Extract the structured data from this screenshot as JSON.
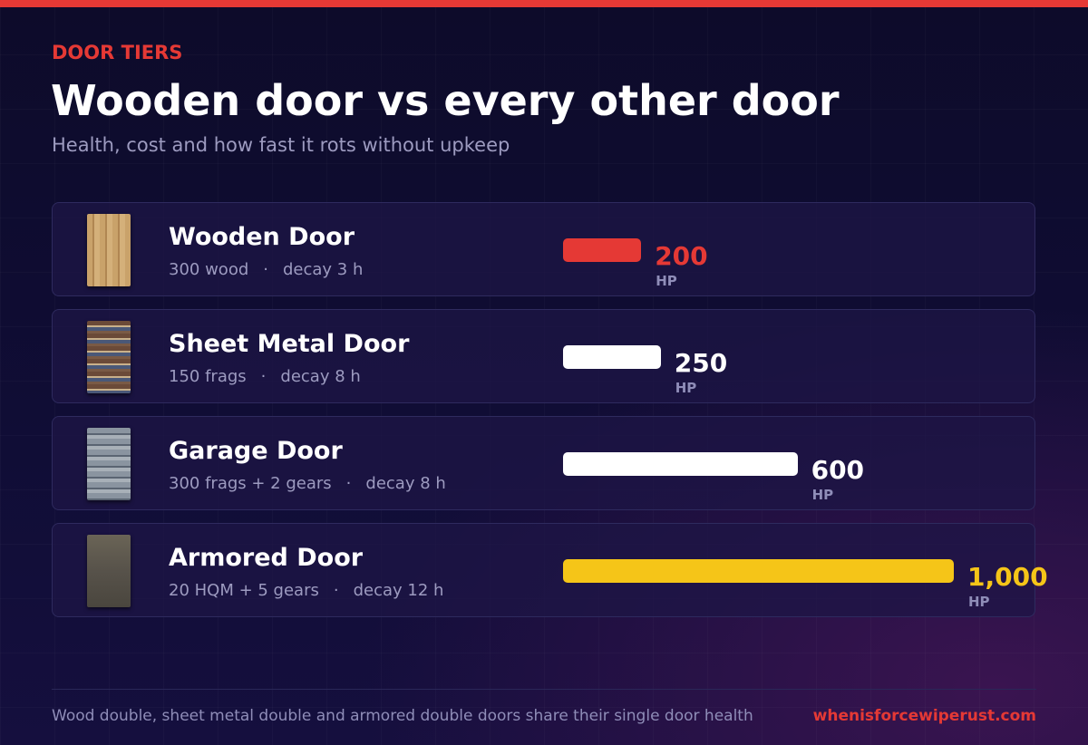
{
  "chart_data": {
    "type": "bar",
    "eyebrow": "DOOR TIERS",
    "title": "Wooden door vs every other door",
    "subtitle": "Health, cost and how fast it rots without upkeep",
    "categories": [
      "Wooden Door",
      "Sheet Metal Door",
      "Garage Door",
      "Armored Door"
    ],
    "costs": [
      "300 wood",
      "150 frags",
      "300 frags + 2 gears",
      "20 HQM + 5 gears"
    ],
    "decays": [
      "decay 3 h",
      "decay 8 h",
      "decay 8 h",
      "decay 12 h"
    ],
    "values": [
      200,
      250,
      600,
      1000
    ],
    "value_labels": [
      "200",
      "250",
      "600",
      "1,000"
    ],
    "unit": "HP",
    "colors": [
      "#e53935",
      "#ffffff",
      "#ffffff",
      "#f5c518"
    ],
    "xlim": [
      0,
      1000
    ],
    "footnote": "Wood double, sheet metal double and armored double doors share their single door health",
    "source": "whenisforcewiperust.com"
  }
}
